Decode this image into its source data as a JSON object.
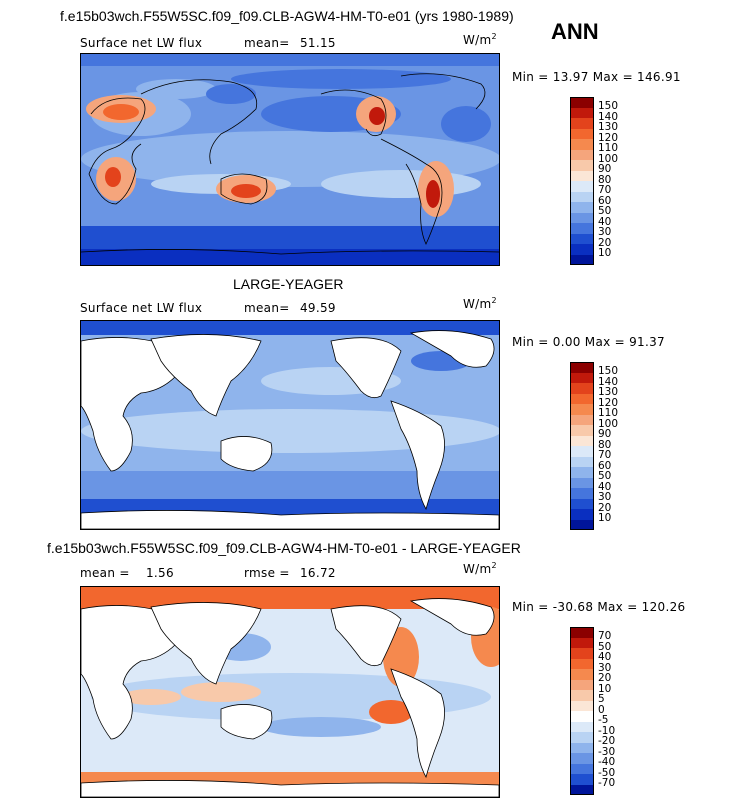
{
  "main_title": "f.e15b03wch.F55W5SC.f09_f09.CLB-AGW4-HM-T0-e01 (yrs 1980-1989)",
  "season": "ANN",
  "panels": [
    {
      "title": "",
      "field": "Surface net LW flux",
      "stat1_label": "mean=",
      "stat1_value": "51.15",
      "stat2_label": "",
      "stat2_value": "",
      "units_base": "W/m",
      "units_exp": "2",
      "minmax": "Min =  13.97 Max = 146.91",
      "colorbar": {
        "ticks": [
          "150",
          "140",
          "130",
          "120",
          "110",
          "100",
          "90",
          "80",
          "70",
          "60",
          "50",
          "40",
          "30",
          "20",
          "10"
        ],
        "colors": [
          "#8b0000",
          "#c1190b",
          "#e3431c",
          "#f2672e",
          "#f5894e",
          "#f5a57c",
          "#f8c9aa",
          "#fbe6d6",
          "#dce9f8",
          "#b9d3f3",
          "#8fb4ec",
          "#6a95e4",
          "#4575dd",
          "#1f4fd0",
          "#0a2fc0",
          "#00159a"
        ]
      }
    },
    {
      "title": "LARGE-YEAGER",
      "field": "Surface net LW flux",
      "stat1_label": "mean=",
      "stat1_value": "49.59",
      "stat2_label": "",
      "stat2_value": "",
      "units_base": "W/m",
      "units_exp": "2",
      "minmax": "Min =   0.00 Max =  91.37",
      "colorbar": {
        "ticks": [
          "150",
          "140",
          "130",
          "120",
          "110",
          "100",
          "90",
          "80",
          "70",
          "60",
          "50",
          "40",
          "30",
          "20",
          "10"
        ],
        "colors": [
          "#8b0000",
          "#c1190b",
          "#e3431c",
          "#f2672e",
          "#f5894e",
          "#f5a57c",
          "#f8c9aa",
          "#fbe6d6",
          "#dce9f8",
          "#b9d3f3",
          "#8fb4ec",
          "#6a95e4",
          "#4575dd",
          "#1f4fd0",
          "#0a2fc0",
          "#00159a"
        ]
      }
    },
    {
      "title": "f.e15b03wch.F55W5SC.f09_f09.CLB-AGW4-HM-T0-e01 - LARGE-YEAGER",
      "field": "",
      "stat1_label": "mean =",
      "stat1_value": "1.56",
      "stat2_label": "rmse =",
      "stat2_value": "16.72",
      "units_base": "W/m",
      "units_exp": "2",
      "minmax": "Min = -30.68 Max = 120.26",
      "colorbar": {
        "ticks": [
          "70",
          "50",
          "40",
          "30",
          "20",
          "10",
          "5",
          "0",
          "-5",
          "-10",
          "-20",
          "-30",
          "-40",
          "-50",
          "-70"
        ],
        "colors": [
          "#8b0000",
          "#c1190b",
          "#e3431c",
          "#f2672e",
          "#f5894e",
          "#f5a57c",
          "#f8c9aa",
          "#fbe6d6",
          "#ffffff",
          "#dce9f8",
          "#b9d3f3",
          "#8fb4ec",
          "#6a95e4",
          "#4575dd",
          "#1f4fd0",
          "#00159a"
        ]
      }
    }
  ]
}
